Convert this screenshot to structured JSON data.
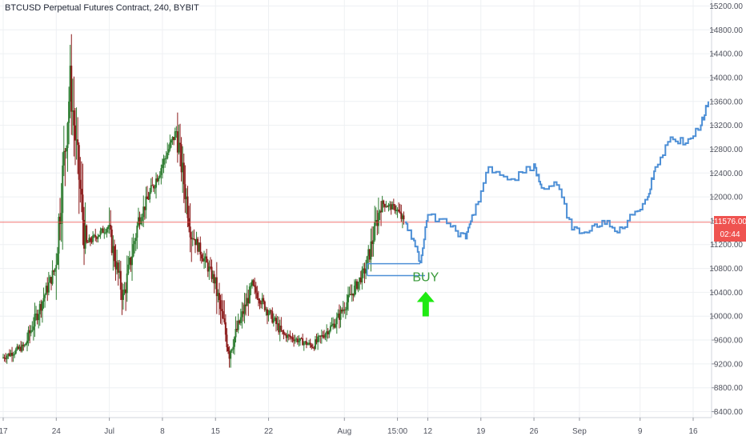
{
  "header": {
    "title": "BTCUSD Perpetual Futures Contract, 240, BYBIT"
  },
  "price_axis": {
    "last_price": "11576.00",
    "countdown": "02:44",
    "last_price_color": "#ef5350",
    "countdown_color": "#ef5350"
  },
  "annotation": {
    "buy_label": "BUY",
    "arrow_color": "#1fea12",
    "buy_text_color": "#3a9a3a"
  },
  "colors": {
    "up": "#26a69a",
    "up_candle": "#2f7d32",
    "down": "#8b1a1a",
    "projection": "#4d8fd6",
    "price_line": "#ef5350",
    "grid": "#eef0f3"
  },
  "chart_data": {
    "type": "candlestick",
    "title": "BTCUSD Perpetual Futures Contract, 240, BYBIT",
    "xlabel": "",
    "ylabel": "",
    "y_axis_position": "right",
    "ylim": [
      8300,
      15300
    ],
    "y_ticks": [
      8400,
      8800,
      9200,
      9600,
      10000,
      10400,
      10800,
      11200,
      11600,
      12000,
      12400,
      12800,
      13200,
      13600,
      14000,
      14400,
      14800,
      15200
    ],
    "y_tick_labels": [
      "8400.00",
      "8800.00",
      "9200.00",
      "9600.00",
      "10000.00",
      "10400.00",
      "10800.00",
      "11200.00",
      "11600.00",
      "12000.00",
      "12400.00",
      "12800.00",
      "13200.00",
      "13600.00",
      "14000.00",
      "14400.00",
      "14800.00",
      "15200.00"
    ],
    "x_tick_labels": [
      "17",
      "24",
      "Jul",
      "8",
      "15",
      "22",
      "Aug",
      "15:00",
      "12",
      "19",
      "26",
      "Sep",
      "9",
      "16"
    ],
    "grid": true,
    "last_price": 11576,
    "price_series_key_points": [
      {
        "date": "2019-06-17",
        "price": 9300
      },
      {
        "date": "2019-06-20",
        "price": 9500
      },
      {
        "date": "2019-06-24",
        "price": 10800
      },
      {
        "date": "2019-06-26",
        "price": 13900
      },
      {
        "date": "2019-06-28",
        "price": 11200
      },
      {
        "date": "2019-07-01",
        "price": 11500
      },
      {
        "date": "2019-07-03",
        "price": 10300
      },
      {
        "date": "2019-07-05",
        "price": 11600
      },
      {
        "date": "2019-07-08",
        "price": 12500
      },
      {
        "date": "2019-07-10",
        "price": 13100
      },
      {
        "date": "2019-07-12",
        "price": 11400
      },
      {
        "date": "2019-07-15",
        "price": 10600
      },
      {
        "date": "2019-07-17",
        "price": 9400
      },
      {
        "date": "2019-07-20",
        "price": 10500
      },
      {
        "date": "2019-07-24",
        "price": 9700
      },
      {
        "date": "2019-07-28",
        "price": 9500
      },
      {
        "date": "2019-07-31",
        "price": 9900
      },
      {
        "date": "2019-08-04",
        "price": 10800
      },
      {
        "date": "2019-08-06",
        "price": 11900
      },
      {
        "date": "2019-08-08",
        "price": 11800
      },
      {
        "date": "2019-08-09",
        "price": 11576
      }
    ],
    "projection": {
      "name": "",
      "points": [
        {
          "date": "2019-08-09",
          "price": 11576
        },
        {
          "date": "2019-08-10",
          "price": 11300
        },
        {
          "date": "2019-08-11",
          "price": 10900
        },
        {
          "date": "2019-08-12",
          "price": 11700
        },
        {
          "date": "2019-08-15",
          "price": 11500
        },
        {
          "date": "2019-08-17",
          "price": 11300
        },
        {
          "date": "2019-08-18",
          "price": 11700
        },
        {
          "date": "2019-08-20",
          "price": 12500
        },
        {
          "date": "2019-08-23",
          "price": 12300
        },
        {
          "date": "2019-08-26",
          "price": 12550
        },
        {
          "date": "2019-08-27",
          "price": 12150
        },
        {
          "date": "2019-08-29",
          "price": 12200
        },
        {
          "date": "2019-08-31",
          "price": 11450
        },
        {
          "date": "2019-09-02",
          "price": 11400
        },
        {
          "date": "2019-09-04",
          "price": 11600
        },
        {
          "date": "2019-09-06",
          "price": 11400
        },
        {
          "date": "2019-09-08",
          "price": 11700
        },
        {
          "date": "2019-09-10",
          "price": 12000
        },
        {
          "date": "2019-09-11",
          "price": 12500
        },
        {
          "date": "2019-09-13",
          "price": 13000
        },
        {
          "date": "2019-09-15",
          "price": 12900
        },
        {
          "date": "2019-09-17",
          "price": 13200
        },
        {
          "date": "2019-09-18",
          "price": 13600
        }
      ]
    },
    "buy_zone": {
      "label": "BUY",
      "upper": 10880,
      "lower": 10680,
      "start": "2019-08-04",
      "end": "2019-08-11"
    }
  }
}
